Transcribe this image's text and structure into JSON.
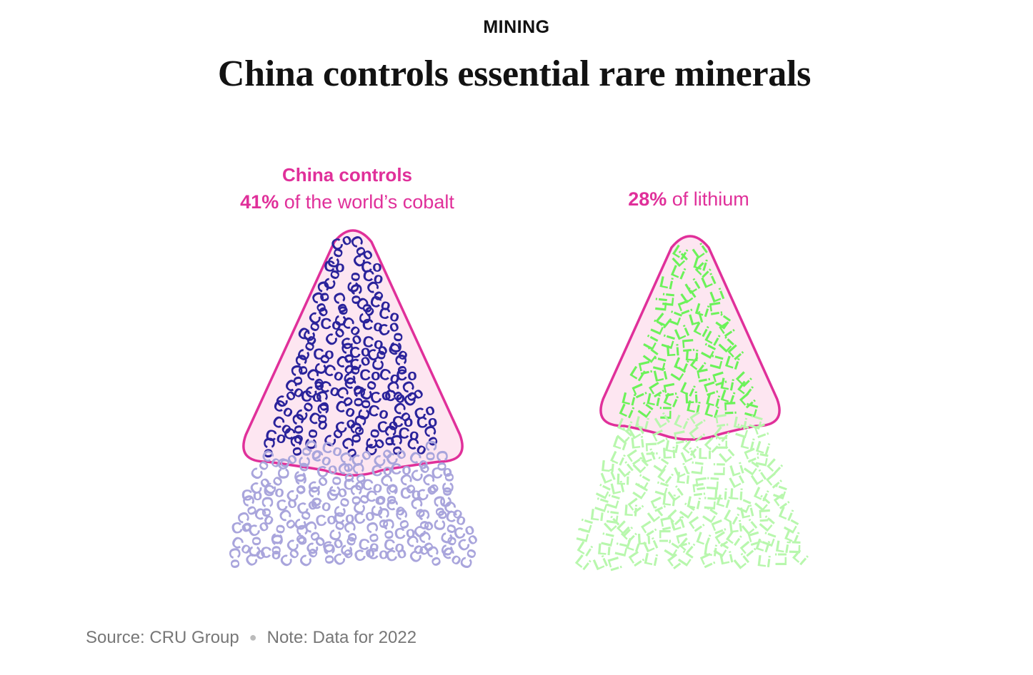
{
  "header": {
    "kicker": "MINING",
    "title": "China controls essential rare minerals"
  },
  "footer": {
    "source": "Source: CRU Group",
    "note": "Note: Data for 2022"
  },
  "colors": {
    "highlight_pink": "#e0309a",
    "blob_fill": "#fde6f1",
    "cobalt_dark": "#2a239b",
    "cobalt_light": "#a9a5dc",
    "lithium_dark": "#6cf25a",
    "lithium_light": "#b8f7ad"
  },
  "chart_data": [
    {
      "type": "pictogram",
      "mineral_symbol": "Co",
      "mineral": "cobalt",
      "label_heading": "China controls",
      "label_value": "41%",
      "label_text": " of the world’s cobalt",
      "china_share_percent": 41
    },
    {
      "type": "pictogram",
      "mineral_symbol": "Li",
      "mineral": "lithium",
      "label_heading": "",
      "label_value": "28%",
      "label_text": " of lithium",
      "china_share_percent": 28
    }
  ]
}
